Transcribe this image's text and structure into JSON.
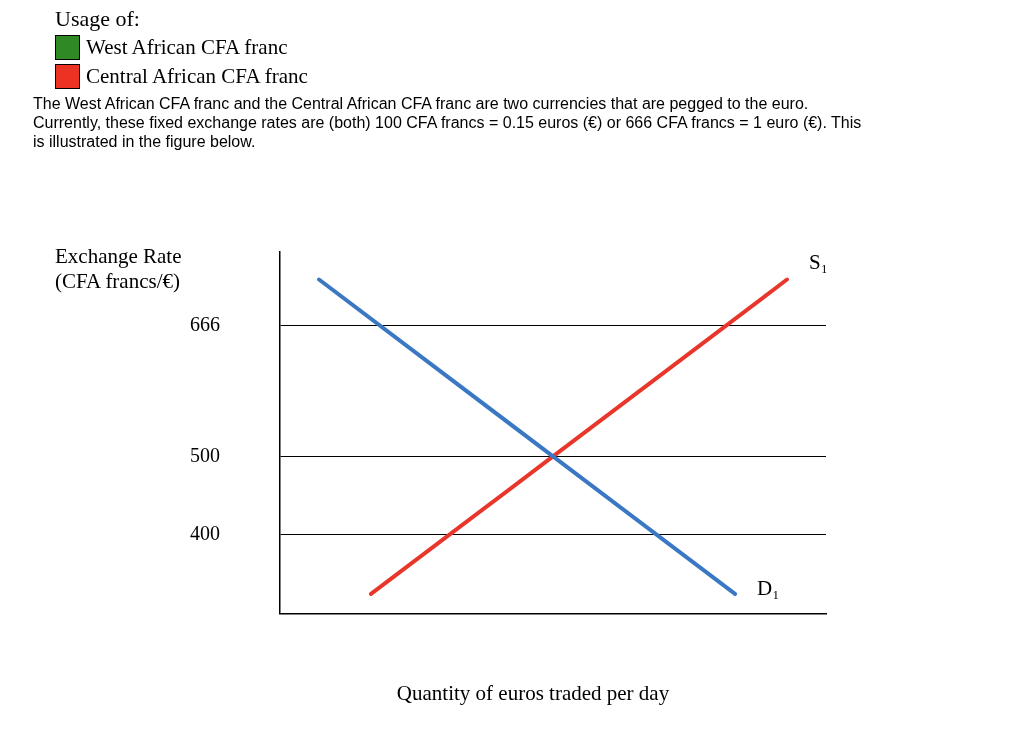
{
  "chart_data": {
    "type": "line",
    "title": "Usage of:",
    "annotations": [
      "West African CFA franc",
      "Central African CFA franc",
      "The West African CFA franc and the Central African CFA franc are two currencies that are pegged to the euro.  Currently, these fixed exchange rates are (both) 100 CFA francs = 0.15 euros (€) or 666 CFA francs = 1 euro (€).  This is illustrated in the figure below."
    ],
    "xlabel": "Quantity of euros traded per day",
    "ylabel": "Exchange Rate (CFA francs/€)",
    "categories": [
      null,
      null,
      null,
      null,
      null,
      null,
      null,
      null,
      null,
      null,
      null,
      null,
      null,
      null,
      null,
      null,
      null,
      null,
      null,
      null,
      null
    ],
    "series": [
      {
        "name": "D₁",
        "color": "#3a78c3",
        "values": [
          null,
          725,
          null,
          null,
          null,
          null,
          null,
          null,
          null,
          null,
          500,
          null,
          null,
          null,
          null,
          null,
          null,
          325,
          null,
          null,
          null
        ]
      },
      {
        "name": "S₁",
        "color": "#e8362a",
        "values": [
          null,
          null,
          null,
          325,
          null,
          null,
          null,
          null,
          null,
          null,
          500,
          null,
          null,
          null,
          null,
          null,
          null,
          null,
          null,
          725,
          null
        ]
      }
    ],
    "ylim": [
      300,
      760
    ],
    "yticks": [
      400,
      500,
      666
    ],
    "grid": "y",
    "legend": false,
    "marker": "none"
  }
}
